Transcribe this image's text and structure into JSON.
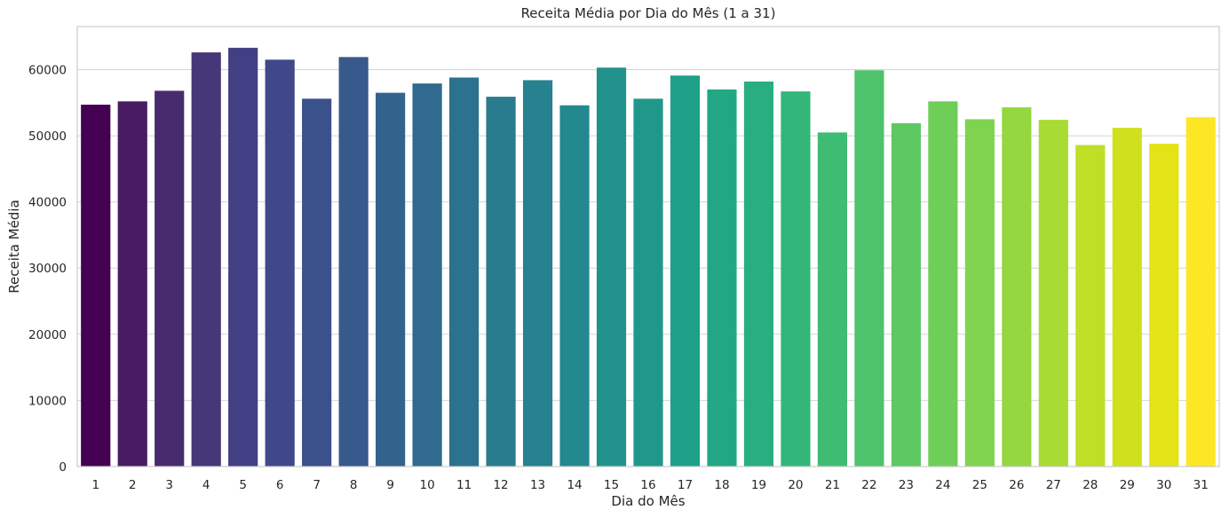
{
  "chart_data": {
    "type": "bar",
    "title": "Receita Média por Dia do Mês (1 a 31)",
    "xlabel": "Dia do Mês",
    "ylabel": "Receita Média",
    "ylim": [
      0,
      66500
    ],
    "yticks": [
      0,
      10000,
      20000,
      30000,
      40000,
      50000,
      60000
    ],
    "grid": "horizontal",
    "categories": [
      "1",
      "2",
      "3",
      "4",
      "5",
      "6",
      "7",
      "8",
      "9",
      "10",
      "11",
      "12",
      "13",
      "14",
      "15",
      "16",
      "17",
      "18",
      "19",
      "20",
      "21",
      "22",
      "23",
      "24",
      "25",
      "26",
      "27",
      "28",
      "29",
      "30",
      "31"
    ],
    "values": [
      54700,
      55200,
      56800,
      62600,
      63300,
      61500,
      55600,
      61900,
      56500,
      57900,
      58800,
      55900,
      58400,
      54600,
      60300,
      55600,
      59100,
      57000,
      58200,
      56700,
      50500,
      59900,
      51900,
      55200,
      52500,
      54300,
      52400,
      48600,
      51200,
      48800,
      52800
    ],
    "colors": [
      "#440154",
      "#471c63",
      "#472b6e",
      "#453778",
      "#423f85",
      "#40488a",
      "#3b518b",
      "#38598c",
      "#33628d",
      "#306a8e",
      "#2c728e",
      "#297b8e",
      "#26828e",
      "#23898e",
      "#21918c",
      "#1f988b",
      "#1fa088",
      "#22a785",
      "#28ae80",
      "#32b67a",
      "#3fbc73",
      "#4ec36b",
      "#5ec962",
      "#6ece58",
      "#80d34f",
      "#94d741",
      "#a8db34",
      "#bddf26",
      "#cfe11c",
      "#e2e418",
      "#fde725"
    ]
  }
}
